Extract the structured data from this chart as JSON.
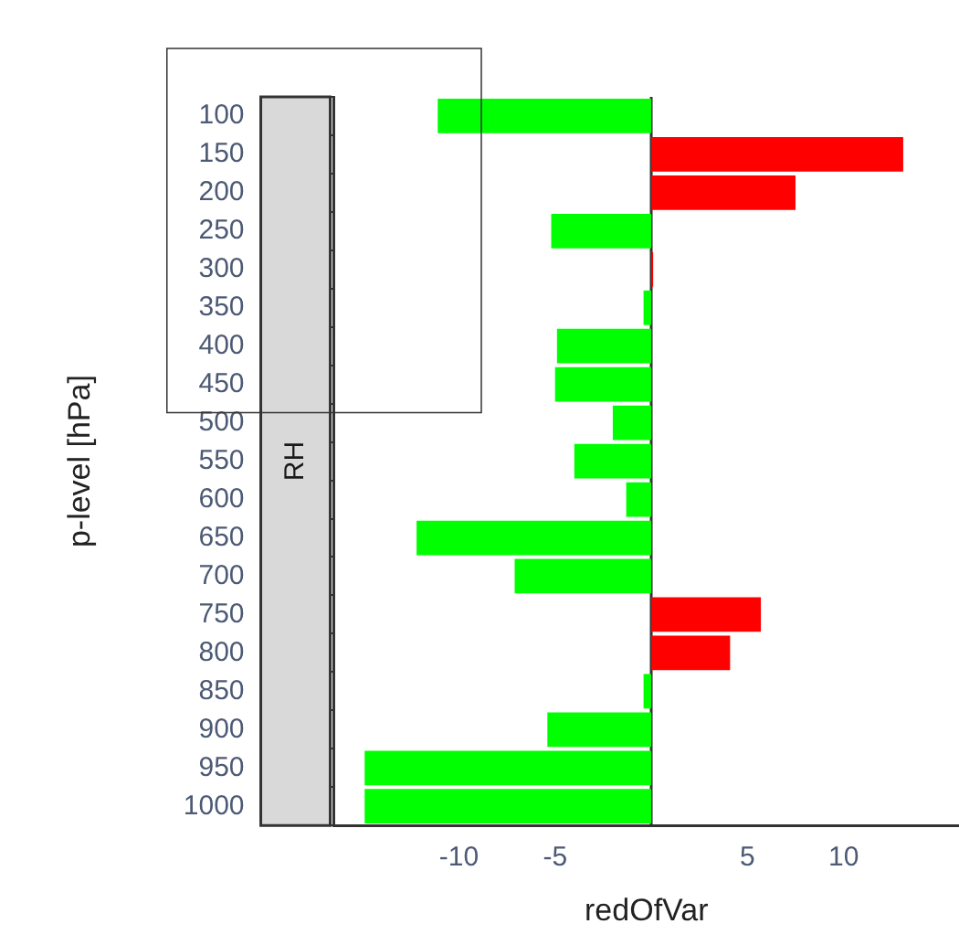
{
  "chart_data": {
    "type": "bar",
    "orientation": "horizontal",
    "title": "RH",
    "xlabel": "redOfVar",
    "ylabel": "p-level [hPa]",
    "categories": [
      "100",
      "150",
      "200",
      "250",
      "300",
      "350",
      "400",
      "450",
      "500",
      "550",
      "600",
      "650",
      "700",
      "750",
      "800",
      "850",
      "900",
      "950",
      "1000"
    ],
    "values": [
      -11.1,
      13.1,
      7.5,
      -5.2,
      0.1,
      -0.4,
      -4.9,
      -5.0,
      -2.0,
      -4.0,
      -1.3,
      -12.2,
      -7.1,
      5.7,
      4.1,
      -0.4,
      -5.4,
      -14.9,
      -14.9
    ],
    "colors": [
      "#00ff00",
      "#ff0000",
      "#ff0000",
      "#00ff00",
      "#ff0000",
      "#00ff00",
      "#00ff00",
      "#00ff00",
      "#00ff00",
      "#00ff00",
      "#00ff00",
      "#00ff00",
      "#00ff00",
      "#ff0000",
      "#ff0000",
      "#00ff00",
      "#00ff00",
      "#00ff00",
      "#00ff00"
    ],
    "xlim": [
      -16.5,
      16
    ],
    "xticks": [
      -10,
      -5,
      5,
      10
    ],
    "ref_lines": [
      {
        "axis": "x",
        "value": 0,
        "color": "#333333"
      }
    ],
    "grid": false,
    "legend": false
  }
}
